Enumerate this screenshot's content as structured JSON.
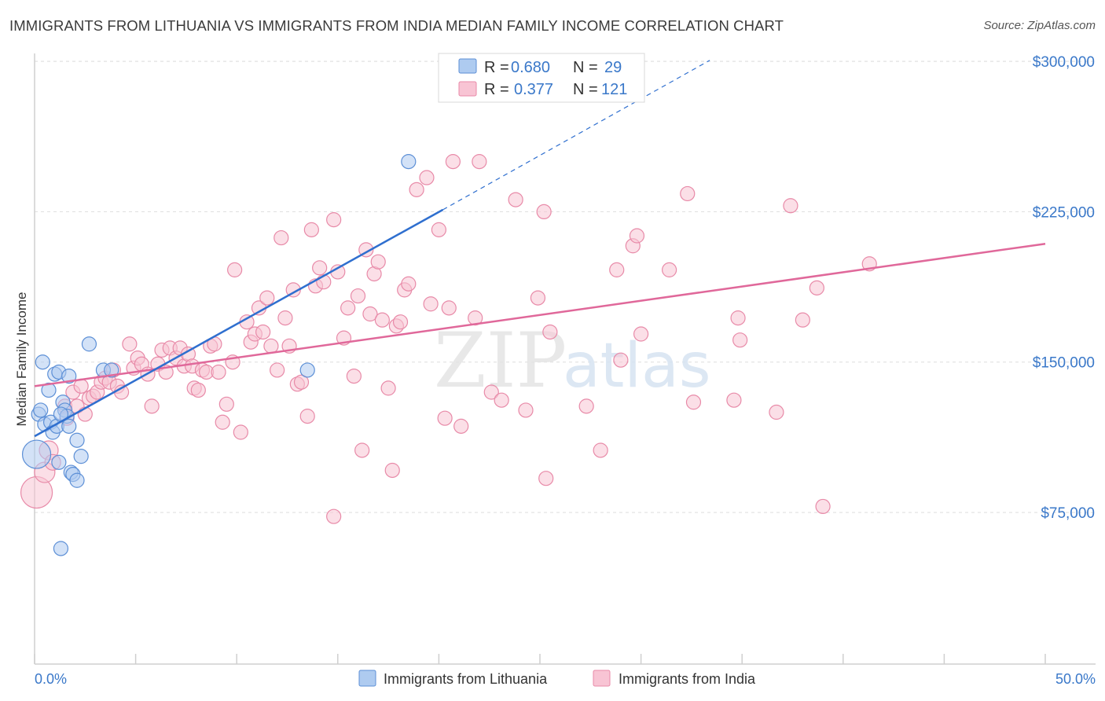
{
  "title": "IMMIGRANTS FROM LITHUANIA VS IMMIGRANTS FROM INDIA MEDIAN FAMILY INCOME CORRELATION CHART",
  "source": "Source: ZipAtlas.com",
  "watermark": {
    "zip": "ZIP",
    "atlas": "atlas"
  },
  "colors": {
    "lithuania_fill": "#aecbf0",
    "lithuania_stroke": "#5c8fd6",
    "lithuania_line": "#2f6fcf",
    "india_fill": "#f8c4d4",
    "india_stroke": "#e88aa8",
    "india_line": "#e0689a",
    "tick_label": "#3a78c9",
    "grid": "#dddddd"
  },
  "legend": {
    "rows": [
      {
        "r_label": "R = ",
        "r_value": "0.680",
        "n_label": "N = ",
        "n_value": "29"
      },
      {
        "r_label": "R = ",
        "r_value": "0.377",
        "n_label": "N = ",
        "n_value": "121"
      }
    ]
  },
  "chart_data": {
    "type": "scatter",
    "xlabel": "",
    "ylabel": "Median Family Income",
    "xlim": [
      0,
      50
    ],
    "ylim": [
      0,
      310000
    ],
    "x_tick_labels": [
      "0.0%",
      "50.0%"
    ],
    "y_ticks": [
      75000,
      150000,
      225000,
      300000
    ],
    "y_tick_labels": [
      "$75,000",
      "$150,000",
      "$225,000",
      "$300,000"
    ],
    "legend_position": "top-center",
    "series": [
      {
        "name": "Immigrants from Lithuania",
        "r": 0.68,
        "n": 29,
        "points": [
          [
            0.1,
            104000,
            18
          ],
          [
            0.2,
            124000,
            9
          ],
          [
            0.3,
            126000,
            9
          ],
          [
            0.4,
            150000,
            9
          ],
          [
            0.5,
            119000,
            9
          ],
          [
            0.7,
            136000,
            9
          ],
          [
            0.8,
            120000,
            9
          ],
          [
            0.9,
            115000,
            9
          ],
          [
            1.0,
            144000,
            9
          ],
          [
            1.1,
            118000,
            9
          ],
          [
            1.2,
            100000,
            9
          ],
          [
            1.2,
            145000,
            9
          ],
          [
            1.4,
            130000,
            9
          ],
          [
            1.5,
            126000,
            9
          ],
          [
            1.6,
            123000,
            9
          ],
          [
            1.7,
            118000,
            9
          ],
          [
            1.7,
            143000,
            9
          ],
          [
            1.8,
            95000,
            9
          ],
          [
            1.9,
            94000,
            9
          ],
          [
            2.1,
            111000,
            9
          ],
          [
            2.1,
            91000,
            9
          ],
          [
            2.3,
            103000,
            9
          ],
          [
            2.7,
            159000,
            9
          ],
          [
            3.4,
            146000,
            9
          ],
          [
            3.8,
            146000,
            9
          ],
          [
            13.5,
            146000,
            9
          ],
          [
            18.5,
            250000,
            9
          ],
          [
            1.3,
            57000,
            9
          ],
          [
            1.3,
            124000,
            9
          ]
        ],
        "trend": {
          "x0": 0,
          "y0": 113000,
          "x1": 20.2,
          "y1": 226000
        },
        "trend_extension": {
          "x0": 20.2,
          "y0": 226000,
          "x1": 33.4,
          "y1": 300500
        }
      },
      {
        "name": "Immigrants from India",
        "r": 0.377,
        "n": 121,
        "points": [
          [
            0.1,
            85000,
            20
          ],
          [
            0.5,
            95000,
            13
          ],
          [
            0.7,
            106000,
            12
          ],
          [
            0.9,
            100000,
            10
          ],
          [
            1.5,
            128000,
            9
          ],
          [
            1.6,
            122000,
            9
          ],
          [
            1.9,
            135000,
            9
          ],
          [
            2.1,
            128000,
            9
          ],
          [
            2.3,
            138000,
            9
          ],
          [
            2.5,
            124000,
            9
          ],
          [
            2.7,
            132000,
            9
          ],
          [
            2.9,
            133000,
            9
          ],
          [
            3.1,
            135000,
            9
          ],
          [
            3.3,
            140000,
            9
          ],
          [
            3.5,
            142000,
            9
          ],
          [
            3.7,
            140000,
            9
          ],
          [
            3.9,
            146000,
            9
          ],
          [
            4.1,
            138000,
            9
          ],
          [
            4.3,
            135000,
            9
          ],
          [
            4.7,
            159000,
            9
          ],
          [
            4.9,
            147000,
            9
          ],
          [
            5.1,
            152000,
            9
          ],
          [
            5.3,
            149000,
            9
          ],
          [
            5.6,
            144000,
            9
          ],
          [
            5.8,
            128000,
            9
          ],
          [
            6.1,
            149000,
            9
          ],
          [
            6.3,
            156000,
            9
          ],
          [
            6.5,
            145000,
            9
          ],
          [
            6.7,
            157000,
            9
          ],
          [
            7.0,
            152000,
            9
          ],
          [
            7.2,
            157000,
            9
          ],
          [
            7.4,
            148000,
            9
          ],
          [
            7.6,
            154000,
            9
          ],
          [
            7.8,
            148000,
            9
          ],
          [
            7.9,
            137000,
            9
          ],
          [
            8.1,
            136000,
            9
          ],
          [
            8.3,
            146000,
            9
          ],
          [
            8.5,
            145000,
            9
          ],
          [
            8.7,
            158000,
            9
          ],
          [
            8.9,
            159000,
            9
          ],
          [
            9.1,
            145000,
            9
          ],
          [
            9.3,
            120000,
            9
          ],
          [
            9.5,
            129000,
            9
          ],
          [
            9.8,
            150000,
            9
          ],
          [
            9.9,
            196000,
            9
          ],
          [
            10.2,
            115000,
            9
          ],
          [
            10.5,
            170000,
            9
          ],
          [
            10.7,
            160000,
            9
          ],
          [
            10.9,
            164000,
            9
          ],
          [
            11.1,
            177000,
            9
          ],
          [
            11.3,
            165000,
            9
          ],
          [
            11.5,
            182000,
            9
          ],
          [
            11.7,
            158000,
            9
          ],
          [
            12.0,
            146000,
            9
          ],
          [
            12.2,
            212000,
            9
          ],
          [
            12.4,
            172000,
            9
          ],
          [
            12.6,
            158000,
            9
          ],
          [
            12.8,
            186000,
            9
          ],
          [
            13.0,
            139000,
            9
          ],
          [
            13.2,
            140000,
            9
          ],
          [
            13.5,
            123000,
            9
          ],
          [
            13.7,
            216000,
            9
          ],
          [
            13.9,
            188000,
            9
          ],
          [
            14.1,
            197000,
            9
          ],
          [
            14.3,
            190000,
            9
          ],
          [
            14.8,
            221000,
            9
          ],
          [
            15.0,
            195000,
            9
          ],
          [
            15.3,
            162000,
            9
          ],
          [
            15.5,
            177000,
            9
          ],
          [
            15.8,
            143000,
            9
          ],
          [
            16.0,
            183000,
            9
          ],
          [
            16.2,
            106000,
            9
          ],
          [
            16.4,
            206000,
            9
          ],
          [
            16.6,
            174000,
            9
          ],
          [
            16.8,
            194000,
            9
          ],
          [
            17.0,
            200000,
            9
          ],
          [
            17.2,
            171000,
            9
          ],
          [
            17.5,
            137000,
            9
          ],
          [
            17.7,
            96000,
            9
          ],
          [
            17.9,
            168000,
            9
          ],
          [
            18.1,
            170000,
            9
          ],
          [
            18.3,
            186000,
            9
          ],
          [
            18.5,
            189000,
            9
          ],
          [
            18.9,
            236000,
            9
          ],
          [
            19.4,
            242000,
            9
          ],
          [
            19.6,
            179000,
            9
          ],
          [
            20.0,
            216000,
            9
          ],
          [
            20.3,
            122000,
            9
          ],
          [
            20.5,
            177000,
            9
          ],
          [
            20.7,
            250000,
            9
          ],
          [
            21.1,
            118000,
            9
          ],
          [
            21.8,
            172000,
            9
          ],
          [
            22.0,
            250000,
            9
          ],
          [
            22.6,
            135000,
            9
          ],
          [
            23.1,
            131000,
            9
          ],
          [
            23.8,
            231000,
            9
          ],
          [
            24.3,
            126000,
            9
          ],
          [
            24.9,
            182000,
            9
          ],
          [
            25.2,
            225000,
            9
          ],
          [
            25.3,
            92000,
            9
          ],
          [
            25.5,
            165000,
            9
          ],
          [
            27.3,
            128000,
            9
          ],
          [
            28.0,
            106000,
            9
          ],
          [
            28.8,
            196000,
            9
          ],
          [
            29.0,
            151000,
            9
          ],
          [
            29.6,
            208000,
            9
          ],
          [
            29.8,
            213000,
            9
          ],
          [
            30.0,
            164000,
            9
          ],
          [
            31.4,
            196000,
            9
          ],
          [
            32.3,
            234000,
            9
          ],
          [
            32.6,
            130000,
            9
          ],
          [
            34.6,
            131000,
            9
          ],
          [
            34.8,
            172000,
            9
          ],
          [
            34.9,
            161000,
            9
          ],
          [
            36.7,
            125000,
            9
          ],
          [
            37.4,
            228000,
            9
          ],
          [
            38.0,
            171000,
            9
          ],
          [
            38.7,
            187000,
            9
          ],
          [
            39.0,
            78000,
            9
          ],
          [
            41.3,
            199000,
            9
          ],
          [
            14.8,
            73000,
            9
          ]
        ],
        "trend": {
          "x0": 0,
          "y0": 138000,
          "x1": 50,
          "y1": 209000
        }
      }
    ]
  }
}
